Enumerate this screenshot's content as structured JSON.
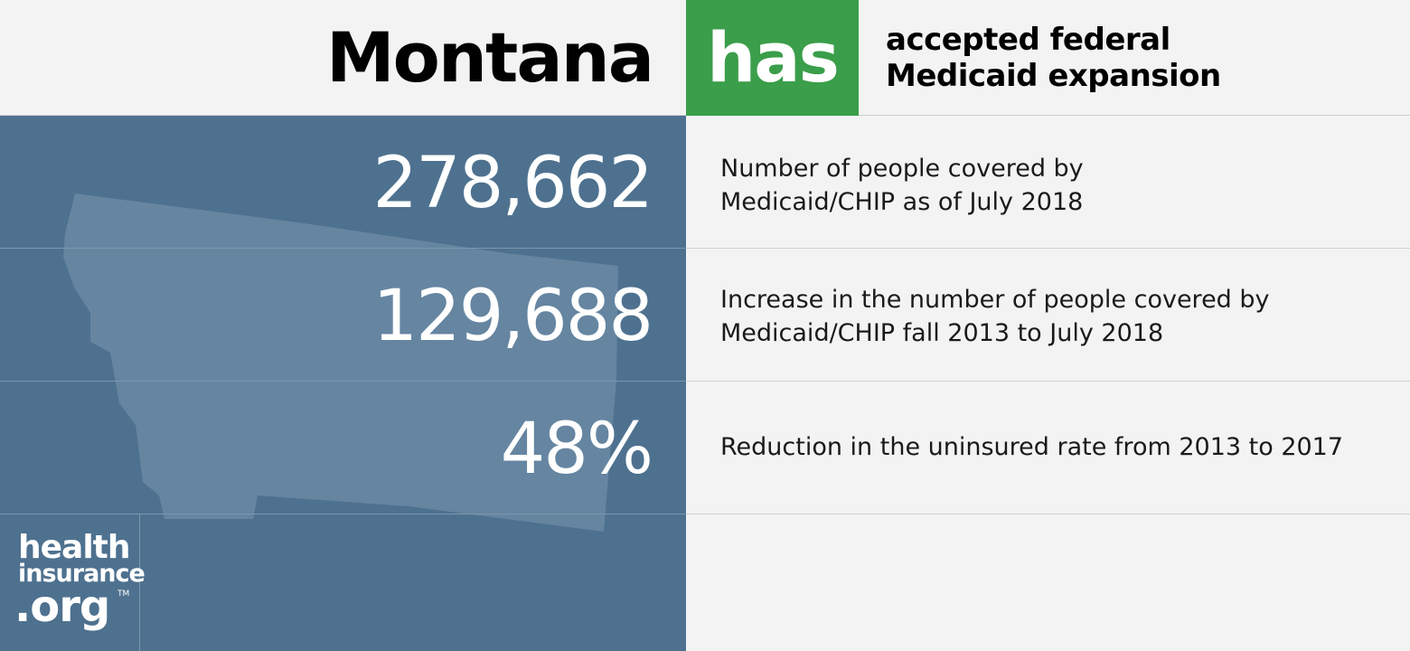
{
  "header": {
    "state": "Montana",
    "status": "has",
    "status_color": "#3a9e4a",
    "expansion_line1": "accepted federal",
    "expansion_line2": "Medicaid expansion"
  },
  "stats": [
    {
      "value": "278,662",
      "desc_line1": "Number of people covered by",
      "desc_line2": "Medicaid/CHIP as of July 2018"
    },
    {
      "value": "129,688",
      "desc_line1": "Increase in the number of people covered by",
      "desc_line2": "Medicaid/CHIP fall 2013 to July 2018"
    },
    {
      "value": "48%",
      "desc_line1": "Reduction in the uninsured rate from 2013 to 2017",
      "desc_line2": ""
    }
  ],
  "logo": {
    "line1": "health",
    "line2": "insurance",
    "line3": ".org",
    "tm": "TM"
  },
  "colors": {
    "panel_blue": "#4e718f",
    "state_shape": "#6585a1",
    "accent_green": "#3a9e4a"
  }
}
